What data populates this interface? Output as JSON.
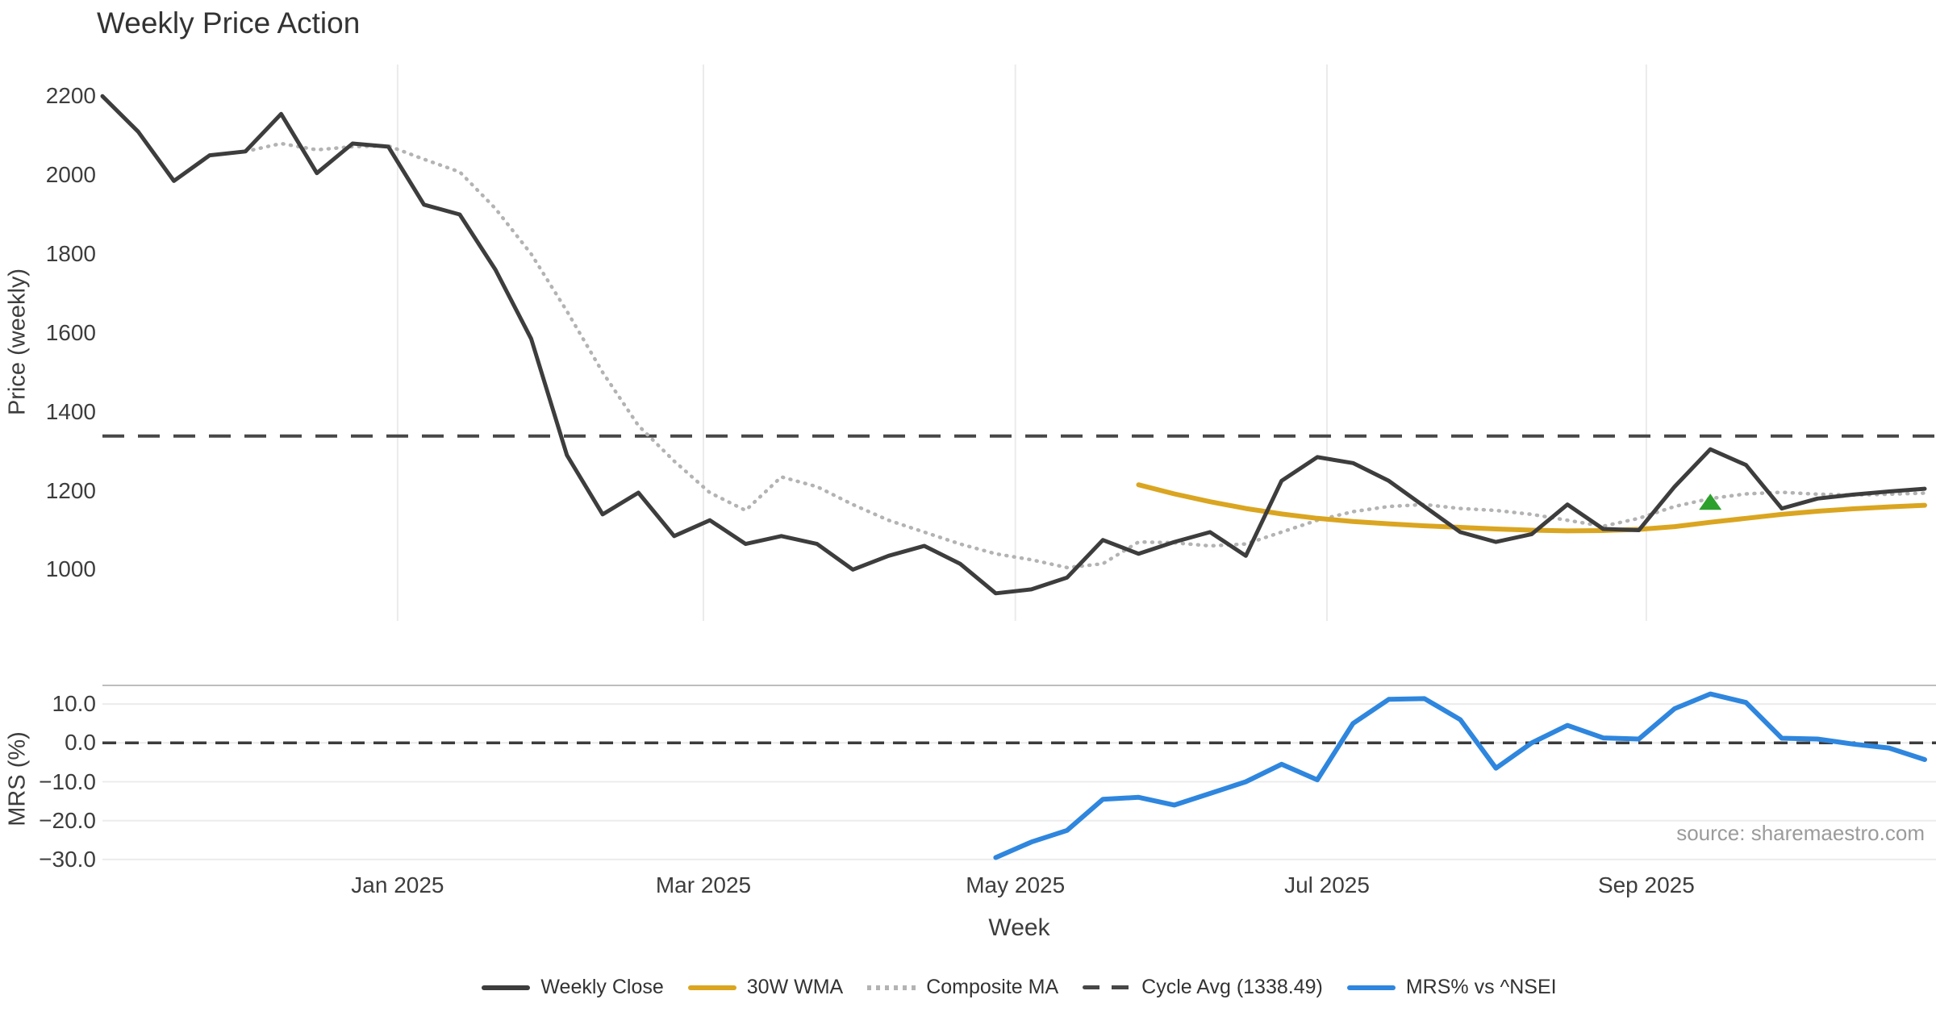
{
  "title": "Weekly Price Action",
  "source_note": "source: sharemaestro.com",
  "legend": {
    "items": [
      {
        "label": "Weekly Close",
        "color": "#3d3d3d",
        "style": "solid"
      },
      {
        "label": "30W WMA",
        "color": "#DAA520",
        "style": "solid"
      },
      {
        "label": "Composite MA",
        "color": "#b3b3b3",
        "style": "dotted"
      },
      {
        "label": "Cycle Avg (1338.49)",
        "color": "#474747",
        "style": "dashed"
      },
      {
        "label": "MRS% vs ^NSEI",
        "color": "#2e86de",
        "style": "solid"
      }
    ]
  },
  "x_axis": {
    "label": "Week",
    "tick_labels": [
      "Jan 2025",
      "Mar 2025",
      "May 2025",
      "Jul 2025",
      "Sep 2025"
    ],
    "tick_weeks": [
      8.26,
      16.82,
      25.55,
      34.27,
      43.21
    ],
    "total_weeks": 52
  },
  "chart_data": {
    "type": "line",
    "title": "Weekly Price Action",
    "x_unit": "week_index",
    "xlabel": "Week",
    "panels": [
      {
        "id": "price",
        "ylabel": "Price (weekly)",
        "ylim": [
          870,
          2270
        ],
        "grid": "vertical-months-only",
        "yticks": [
          {
            "v": 2200,
            "label": "2200"
          },
          {
            "v": 2000,
            "label": "2000"
          },
          {
            "v": 1800,
            "label": "1800"
          },
          {
            "v": 1600,
            "label": "1600"
          },
          {
            "v": 1400,
            "label": "1400"
          },
          {
            "v": 1200,
            "label": "1200"
          },
          {
            "v": 1000,
            "label": "1000"
          }
        ],
        "hline": {
          "name": "Cycle Avg",
          "value": 1338.49,
          "style": "dashed",
          "color": "#474747"
        },
        "series": [
          {
            "name": "Composite MA",
            "color": "#b3b3b3",
            "dash": "dotted",
            "width": 4.5,
            "start_week": 4,
            "values": [
              2060,
              2080,
              2064,
              2072,
              2074,
              2040,
              2008,
              1915,
              1800,
              1655,
              1500,
              1365,
              1275,
              1195,
              1150,
              1235,
              1210,
              1165,
              1125,
              1095,
              1065,
              1040,
              1025,
              1005,
              1015,
              1070,
              1068,
              1060,
              1065,
              1095,
              1125,
              1147,
              1160,
              1165,
              1155,
              1150,
              1140,
              1125,
              1110,
              1130,
              1160,
              1180,
              1192,
              1196,
              1191,
              1189,
              1191,
              1194
            ]
          },
          {
            "name": "30W WMA",
            "color": "#DAA520",
            "dash": "solid",
            "width": 6,
            "start_week": 29,
            "values": [
              1215,
              1192,
              1172,
              1155,
              1141,
              1130,
              1122,
              1116,
              1111,
              1107,
              1103,
              1100,
              1098,
              1099,
              1102,
              1109,
              1120,
              1130,
              1140,
              1148,
              1154,
              1159,
              1163
            ]
          },
          {
            "name": "Weekly Close",
            "color": "#3d3d3d",
            "dash": "solid",
            "width": 5,
            "start_week": 0,
            "values": [
              2200,
              2110,
              1985,
              2050,
              2060,
              2155,
              2005,
              2080,
              2072,
              1925,
              1900,
              1760,
              1585,
              1290,
              1140,
              1195,
              1085,
              1125,
              1065,
              1085,
              1065,
              1000,
              1035,
              1060,
              1015,
              940,
              950,
              980,
              1075,
              1040,
              1070,
              1095,
              1035,
              1225,
              1285,
              1270,
              1225,
              1160,
              1095,
              1070,
              1090,
              1165,
              1103,
              1100,
              1210,
              1305,
              1265,
              1155,
              1180,
              1190,
              1198,
              1205
            ]
          }
        ],
        "markers": [
          {
            "shape": "triangle-up",
            "color": "#2ca02c",
            "week": 45,
            "value": 1168
          }
        ]
      },
      {
        "id": "mrs",
        "ylabel": "MRS (%)",
        "ylim": [
          -35,
          14.8
        ],
        "grid": "horizontal",
        "yticks": [
          {
            "v": 10,
            "label": "10.0"
          },
          {
            "v": 0,
            "label": "0.0"
          },
          {
            "v": -10,
            "label": "−10.0"
          },
          {
            "v": -20,
            "label": "−20.0"
          },
          {
            "v": -30,
            "label": "−30.0"
          }
        ],
        "hline": {
          "name": "zero",
          "value": 0,
          "style": "dashed",
          "color": "#3c3c3c"
        },
        "series": [
          {
            "name": "MRS% vs ^NSEI",
            "color": "#2e86de",
            "dash": "solid",
            "width": 6,
            "start_week": 25,
            "values": [
              -29.5,
              -25.5,
              -22.5,
              -14.5,
              -14.0,
              -16.0,
              -13.0,
              -10.0,
              -5.5,
              -9.5,
              5.0,
              11.2,
              11.4,
              6.0,
              -6.5,
              0.0,
              4.5,
              1.3,
              1.0,
              8.8,
              12.6,
              10.4,
              1.2,
              1.0,
              -0.3,
              -1.3,
              -4.3
            ]
          }
        ]
      }
    ]
  }
}
